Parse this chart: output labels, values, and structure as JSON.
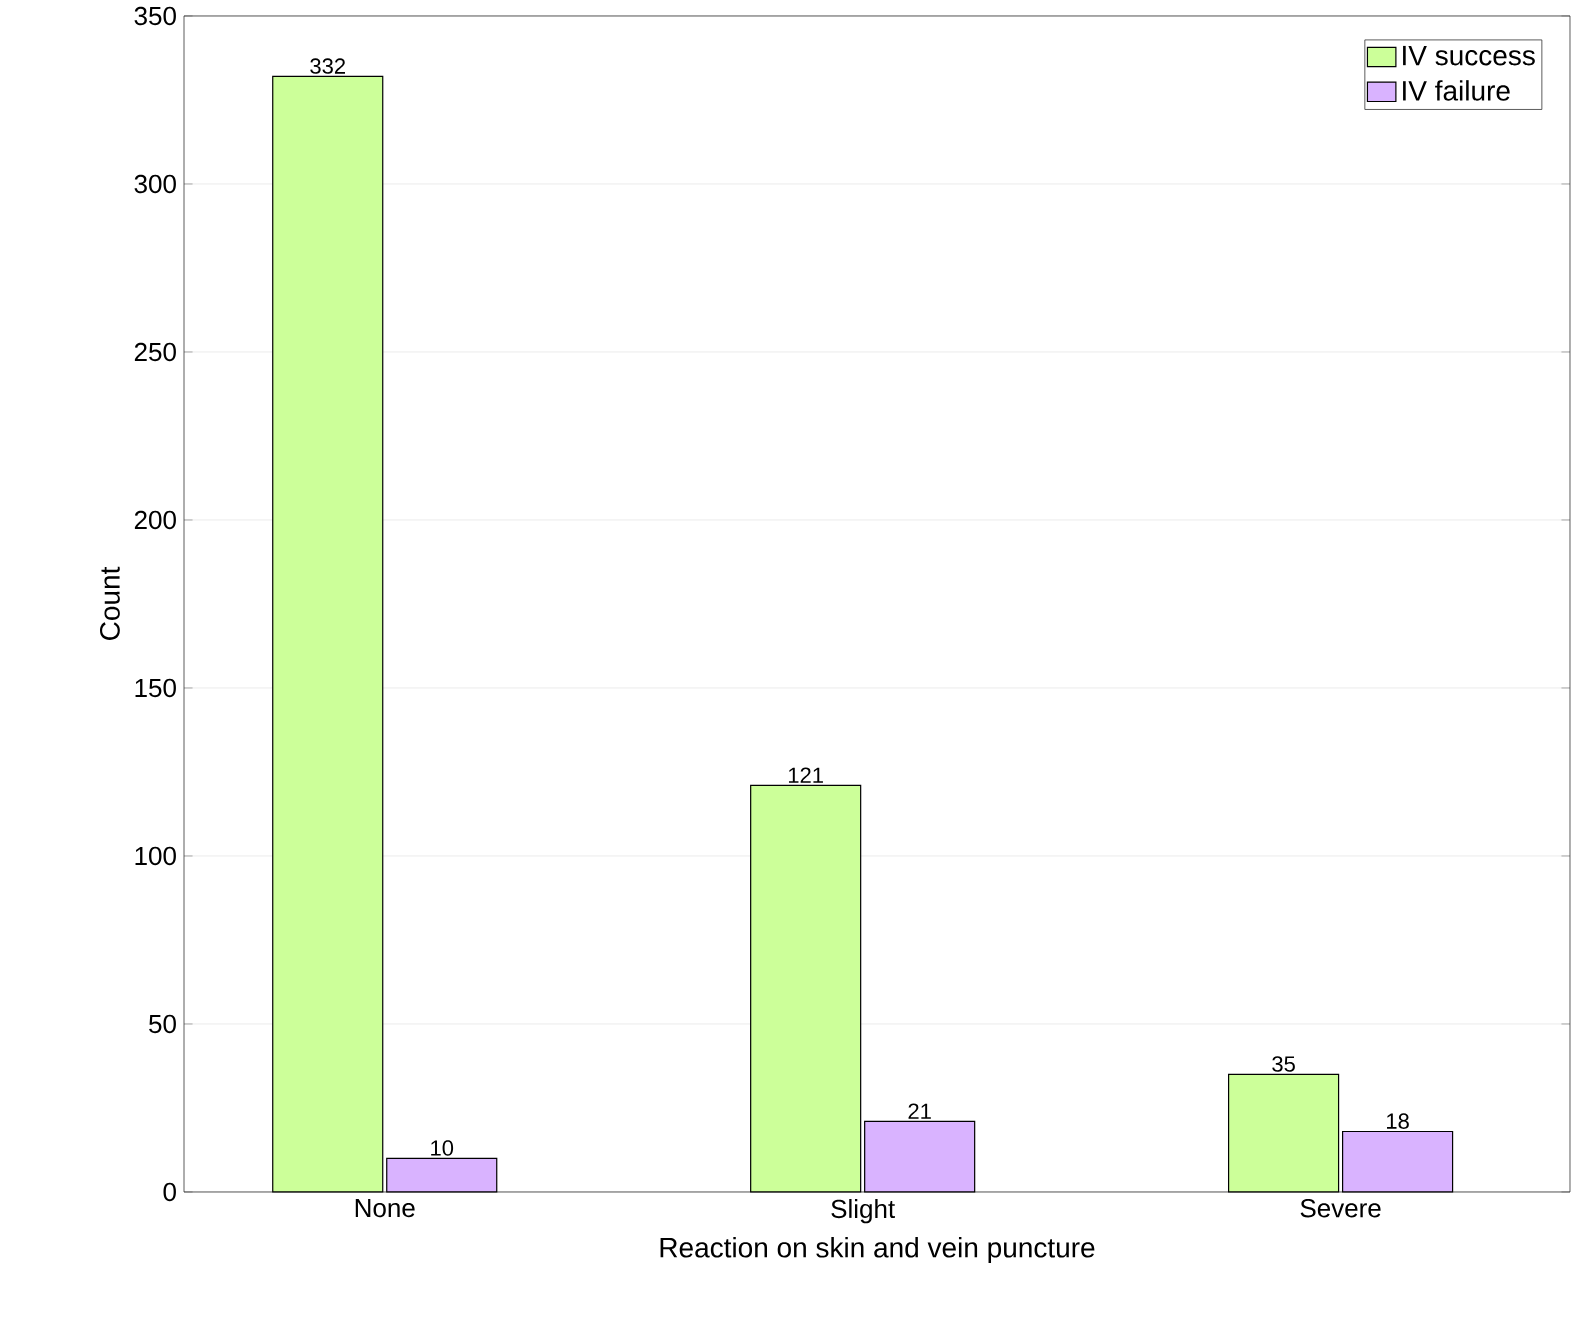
{
  "chart_data": {
    "type": "bar",
    "xlabel": "Reaction on skin and vein puncture",
    "ylabel": "Count",
    "categories": [
      "None",
      "Slight",
      "Severe"
    ],
    "series": [
      {
        "name": "IV success",
        "color": "#ccff99",
        "values": [
          332,
          121,
          35
        ]
      },
      {
        "name": "IV failure",
        "color": "#d9b3ff",
        "values": [
          10,
          21,
          18
        ]
      }
    ],
    "ylim": [
      0,
      350
    ],
    "yticks": [
      0,
      50,
      100,
      150,
      200,
      250,
      300,
      350
    ],
    "grid": "y",
    "legend": "top right",
    "data_labels": true
  }
}
